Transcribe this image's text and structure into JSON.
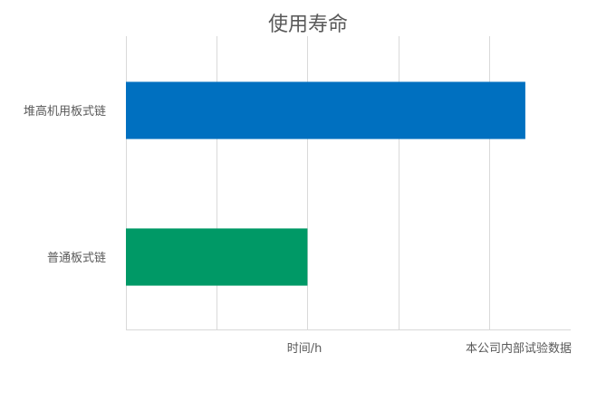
{
  "chart_data": {
    "type": "bar",
    "orientation": "horizontal",
    "title": "使用寿命",
    "xlabel": "时间/h",
    "ylabel": "",
    "annotation": "本公司内部试验数据",
    "categories": [
      "堆高机用板式链",
      "普通板式链"
    ],
    "values": [
      4.4,
      2.0
    ],
    "colors": [
      "#0070C0",
      "#009966"
    ],
    "xlim": [
      0,
      4.9
    ],
    "grid_step": 1,
    "grid": true,
    "x_tick_labels_shown": false,
    "legend": "none"
  }
}
